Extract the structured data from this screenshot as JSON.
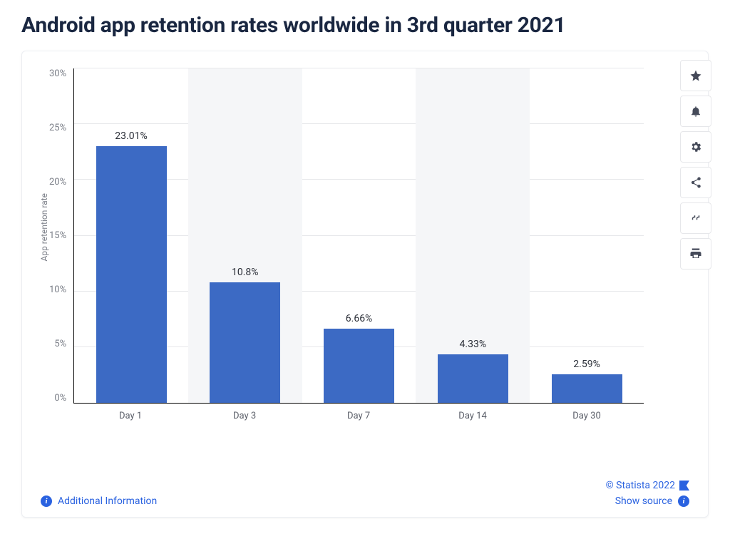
{
  "title": "Android app retention rates worldwide in 3rd quarter 2021",
  "chart": {
    "type": "bar",
    "ylabel": "App retention rate",
    "ylim": [
      0,
      30
    ],
    "ytick_step": 5,
    "bar_color": "#3c6ac4",
    "alt_band_color": "#f5f6f8",
    "grid_color": "#e6e7ea",
    "background_color": "#ffffff",
    "categories": [
      "Day 1",
      "Day 3",
      "Day 7",
      "Day 14",
      "Day 30"
    ],
    "values": [
      23.01,
      10.8,
      6.66,
      4.33,
      2.59
    ],
    "value_labels": [
      "23.01%",
      "10.8%",
      "6.66%",
      "4.33%",
      "2.59%"
    ],
    "ytick_labels": [
      "30%",
      "25%",
      "20%",
      "15%",
      "10%",
      "5%",
      "0%"
    ]
  },
  "toolbar": {
    "items": [
      {
        "name": "star-icon"
      },
      {
        "name": "bell-icon"
      },
      {
        "name": "gear-icon"
      },
      {
        "name": "share-icon"
      },
      {
        "name": "quote-icon"
      },
      {
        "name": "print-icon"
      }
    ]
  },
  "footer": {
    "additional_info": "Additional Information",
    "copyright": "© Statista 2022",
    "show_source": "Show source"
  },
  "colors": {
    "title_text": "#1a2741",
    "link_blue": "#2a62e0",
    "axis_text": "#7a7e87"
  }
}
